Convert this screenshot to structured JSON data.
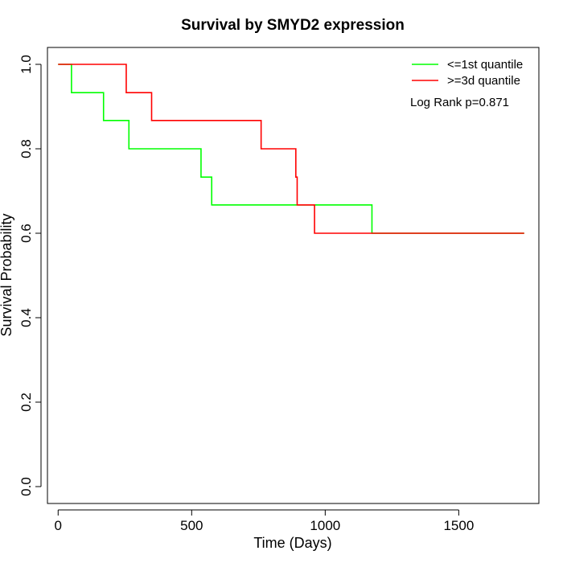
{
  "chart_data": {
    "type": "line",
    "title": "Survival by SMYD2 expression",
    "xlabel": "Time (Days)",
    "ylabel": "Survival Probability",
    "xlim": [
      -40,
      1800
    ],
    "ylim": [
      -0.04,
      1.04
    ],
    "x_ticks": [
      0,
      500,
      1000,
      1500
    ],
    "y_ticks": [
      0.0,
      0.2,
      0.4,
      0.6,
      0.8,
      1.0
    ],
    "x_tick_labels": [
      "0",
      "500",
      "1000",
      "1500"
    ],
    "y_tick_labels": [
      "0.0",
      "0.2",
      "0.4",
      "0.6",
      "0.8",
      "1.0"
    ],
    "legend_position": "top-right",
    "annotation": "Log Rank p=0.871",
    "series": [
      {
        "name": "<=1st quantile",
        "color": "#00ff00",
        "steps": [
          {
            "x": 0,
            "y": 1.0
          },
          {
            "x": 50,
            "y": 0.933
          },
          {
            "x": 170,
            "y": 0.867
          },
          {
            "x": 265,
            "y": 0.8
          },
          {
            "x": 535,
            "y": 0.733
          },
          {
            "x": 575,
            "y": 0.667
          },
          {
            "x": 1175,
            "y": 0.6
          },
          {
            "x": 1745,
            "y": 0.6
          }
        ]
      },
      {
        "name": ">=3d quantile",
        "color": "#ff0000",
        "steps": [
          {
            "x": 0,
            "y": 1.0
          },
          {
            "x": 255,
            "y": 0.933
          },
          {
            "x": 350,
            "y": 0.867
          },
          {
            "x": 760,
            "y": 0.8
          },
          {
            "x": 890,
            "y": 0.733
          },
          {
            "x": 895,
            "y": 0.667
          },
          {
            "x": 960,
            "y": 0.6
          },
          {
            "x": 1745,
            "y": 0.6
          }
        ]
      }
    ]
  }
}
